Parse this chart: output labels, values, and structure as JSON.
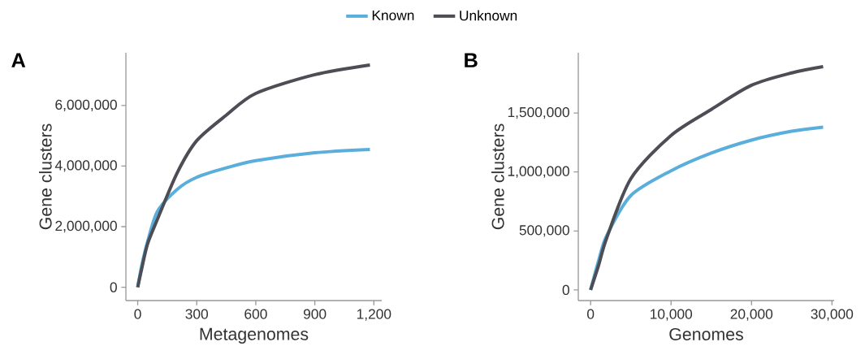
{
  "chart_data": [
    {
      "type": "line",
      "xlabel": "Metagenomes",
      "ylabel": "Gene clusters",
      "annotations": [
        "A"
      ],
      "legend": "top",
      "xlim": [
        -60,
        1240
      ],
      "ylim": [
        -440000,
        7740000
      ],
      "xticks": [
        0,
        300,
        600,
        900,
        {
          "value": 1200,
          "label": "1,200"
        }
      ],
      "yticks": [
        0,
        {
          "value": 2000000,
          "label": "2,000,000"
        },
        {
          "value": 4000000,
          "label": "4,000,000"
        },
        {
          "value": 6000000,
          "label": "6,000,000"
        }
      ],
      "series": [
        {
          "name": "Known",
          "color": "#5aaedc",
          "x": [
            0,
            20,
            50,
            100,
            200,
            300,
            450,
            600,
            900,
            1180
          ],
          "values": [
            0,
            700000,
            1500000,
            2500000,
            3230000,
            3630000,
            3940000,
            4180000,
            4440000,
            4550000
          ]
        },
        {
          "name": "Unknown",
          "color": "#4d4d55",
          "x": [
            0,
            20,
            50,
            100,
            200,
            300,
            450,
            600,
            900,
            1180
          ],
          "values": [
            0,
            600000,
            1430000,
            2240000,
            3770000,
            4840000,
            5680000,
            6400000,
            7020000,
            7340000
          ]
        }
      ]
    },
    {
      "type": "line",
      "xlabel": "Genomes",
      "ylabel": "Gene clusters",
      "annotations": [
        "B"
      ],
      "xlim": [
        -1530,
        30270
      ],
      "ylim": [
        -90000,
        2010000
      ],
      "xticks": [
        0,
        {
          "value": 10000,
          "label": "10,000"
        },
        {
          "value": 20000,
          "label": "20,000"
        },
        {
          "value": 30000,
          "label": "30,000"
        }
      ],
      "yticks": [
        0,
        {
          "value": 500000,
          "label": "500,000"
        },
        {
          "value": 1000000,
          "label": "1,000,000"
        },
        {
          "value": 1500000,
          "label": "1,500,000"
        }
      ],
      "series": [
        {
          "color": "#5aaedc",
          "x": [
            0,
            1000,
            2000,
            5000,
            10000,
            15000,
            20000,
            25000,
            28900
          ],
          "values": [
            0,
            250000,
            460000,
            800000,
            1010000,
            1160000,
            1270000,
            1345000,
            1380000
          ]
        },
        {
          "color": "#4d4d55",
          "x": [
            0,
            1000,
            2000,
            5000,
            10000,
            15000,
            20000,
            25000,
            28900
          ],
          "values": [
            0,
            210000,
            440000,
            943000,
            1310000,
            1530000,
            1735000,
            1840000,
            1893000
          ]
        }
      ]
    }
  ]
}
